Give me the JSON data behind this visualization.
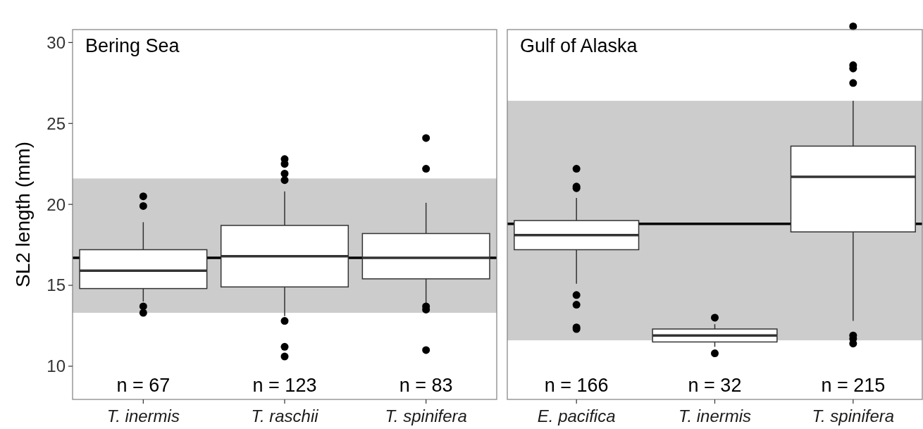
{
  "chart_data": [
    {
      "type": "box",
      "ylabel": "SL2 length (mm)",
      "categories": [
        "T. inermis",
        "T. raschii",
        "T. spinifera"
      ],
      "ylim": [
        7.95,
        30.8
      ],
      "yticks": [
        10,
        15,
        20,
        25,
        30
      ],
      "boxes": [
        {
          "low": 14.0,
          "q1": 14.8,
          "median": 15.9,
          "q3": 17.2,
          "high": 18.9,
          "outliers": [
            20.5,
            19.9,
            13.7,
            13.3
          ]
        },
        {
          "low": 13.1,
          "q1": 14.9,
          "median": 16.8,
          "q3": 18.7,
          "high": 20.8,
          "outliers": [
            22.8,
            22.5,
            21.9,
            21.5,
            12.8,
            11.2,
            10.6
          ]
        },
        {
          "low": 13.8,
          "q1": 15.4,
          "median": 16.7,
          "q3": 18.2,
          "high": 20.1,
          "outliers": [
            24.1,
            22.2,
            13.7,
            13.5,
            11.0
          ]
        }
      ],
      "color": "#ffffff",
      "ref_lines": [
        {
          "axis": "y",
          "value": 16.7,
          "color": "#000000"
        }
      ],
      "bands": [
        {
          "axis": "y",
          "from": 13.3,
          "to": 21.6,
          "color": "#cccccc"
        }
      ],
      "annotations": [
        "Bering Sea",
        "n = 67",
        "n = 123",
        "n = 83"
      ],
      "grid": false
    },
    {
      "type": "box",
      "categories": [
        "E. pacifica",
        "T. inermis",
        "T. spinifera"
      ],
      "ylim": [
        7.95,
        30.8
      ],
      "tick_labels": "x",
      "boxes": [
        {
          "low": 15.1,
          "q1": 17.2,
          "median": 18.1,
          "q3": 19.0,
          "high": 20.4,
          "outliers": [
            22.2,
            21.1,
            21.0,
            14.4,
            13.8,
            12.4,
            12.3
          ]
        },
        {
          "low": 11.2,
          "q1": 11.5,
          "median": 11.9,
          "q3": 12.3,
          "high": 12.6,
          "outliers": [
            13.0,
            10.8
          ]
        },
        {
          "low": 12.8,
          "q1": 18.3,
          "median": 21.7,
          "q3": 23.6,
          "high": 26.4,
          "outliers": [
            31.0,
            28.6,
            28.4,
            27.5,
            11.9,
            11.7,
            11.4
          ]
        }
      ],
      "color": "#ffffff",
      "ref_lines": [
        {
          "axis": "y",
          "value": 18.8,
          "color": "#000000"
        }
      ],
      "bands": [
        {
          "axis": "y",
          "from": 11.6,
          "to": 26.4,
          "color": "#cccccc"
        }
      ],
      "annotations": [
        "Gulf of Alaska",
        "n = 166",
        "n = 32",
        "n = 215"
      ],
      "grid": false
    }
  ]
}
